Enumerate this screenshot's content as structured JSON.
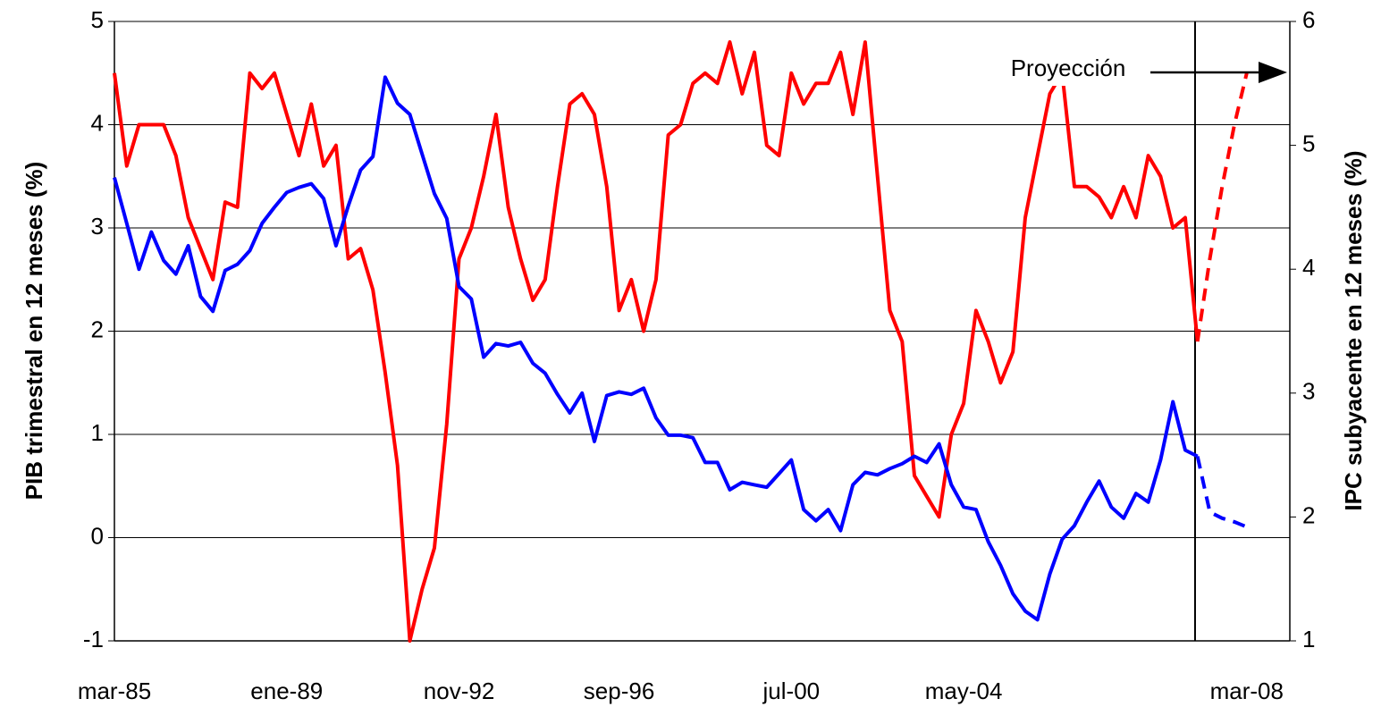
{
  "chart_data": {
    "type": "line",
    "ylabel": "PIB trimestral en 12 meses (%)",
    "y2label": "IPC subyacente en 12 meses (%)",
    "annotation": "Proyección",
    "categories": [
      "mar-85",
      null,
      null,
      null,
      null,
      null,
      null,
      null,
      null,
      null,
      null,
      null,
      null,
      null,
      "ene-89",
      null,
      null,
      null,
      null,
      null,
      null,
      null,
      null,
      null,
      null,
      null,
      null,
      null,
      "nov-92",
      null,
      null,
      null,
      null,
      null,
      null,
      null,
      null,
      null,
      null,
      null,
      null,
      "sep-96",
      null,
      null,
      null,
      null,
      null,
      null,
      null,
      null,
      null,
      null,
      null,
      null,
      null,
      "jul-00",
      null,
      null,
      null,
      null,
      null,
      null,
      null,
      null,
      null,
      null,
      null,
      null,
      null,
      "may-04",
      null,
      null,
      null,
      null,
      null,
      null,
      null,
      null,
      null,
      null,
      null,
      null,
      null,
      null,
      null,
      null,
      null,
      null,
      null,
      null,
      null,
      null,
      "mar-08"
    ],
    "ylim": [
      -1,
      5
    ],
    "yticks": [
      -1,
      0,
      1,
      2,
      3,
      4,
      5
    ],
    "y2lim": [
      1,
      6
    ],
    "y2ticks": [
      1,
      2,
      3,
      4,
      5,
      6
    ],
    "grid": true,
    "series": [
      {
        "color": "#ff0000",
        "axis": "y",
        "dashed": false,
        "values": [
          4.5,
          3.6,
          4.0,
          4.0,
          4.0,
          3.7,
          3.1,
          2.8,
          2.5,
          3.25,
          3.2,
          4.5,
          4.35,
          4.5,
          4.1,
          3.7,
          4.2,
          3.6,
          3.8,
          2.7,
          2.8,
          2.4,
          1.6,
          0.7,
          -1.0,
          -0.5,
          -0.1,
          1.1,
          2.7,
          3.0,
          3.5,
          4.1,
          3.2,
          2.7,
          2.3,
          2.5,
          3.4,
          4.2,
          4.3,
          4.1,
          3.4,
          2.2,
          2.5,
          2.0,
          2.5,
          3.9,
          4.0,
          4.4,
          4.5,
          4.4,
          4.8,
          4.3,
          4.7,
          3.8,
          3.7,
          4.5,
          4.2,
          4.4,
          4.4,
          4.7,
          4.1,
          4.8,
          3.5,
          2.2,
          1.9,
          0.6,
          0.4,
          0.2,
          1.0,
          1.3,
          2.2,
          1.9,
          1.5,
          1.8,
          3.1,
          3.7,
          4.3,
          4.5,
          3.4,
          3.4,
          3.3,
          3.1,
          3.4,
          3.1,
          3.7,
          3.5,
          3.0,
          3.1,
          1.9,
          null,
          null,
          null,
          null
        ]
      },
      {
        "color": "#ff0000",
        "axis": "y",
        "dashed": true,
        "values": [
          null,
          null,
          null,
          null,
          null,
          null,
          null,
          null,
          null,
          null,
          null,
          null,
          null,
          null,
          null,
          null,
          null,
          null,
          null,
          null,
          null,
          null,
          null,
          null,
          null,
          null,
          null,
          null,
          null,
          null,
          null,
          null,
          null,
          null,
          null,
          null,
          null,
          null,
          null,
          null,
          null,
          null,
          null,
          null,
          null,
          null,
          null,
          null,
          null,
          null,
          null,
          null,
          null,
          null,
          null,
          null,
          null,
          null,
          null,
          null,
          null,
          null,
          null,
          null,
          null,
          null,
          null,
          null,
          null,
          null,
          null,
          null,
          null,
          null,
          null,
          null,
          null,
          null,
          null,
          null,
          null,
          null,
          null,
          null,
          null,
          null,
          null,
          null,
          1.9,
          2.7,
          3.4,
          4.0,
          4.5
        ]
      },
      {
        "color": "#0000ff",
        "axis": "y2",
        "dashed": false,
        "values": [
          4.74,
          4.37,
          4.0,
          4.3,
          4.07,
          3.96,
          4.19,
          3.78,
          3.66,
          3.99,
          4.04,
          4.15,
          4.37,
          4.5,
          4.62,
          4.66,
          4.69,
          4.57,
          4.19,
          4.51,
          4.8,
          4.91,
          5.55,
          5.34,
          5.25,
          4.93,
          4.61,
          4.41,
          3.86,
          3.76,
          3.29,
          3.4,
          3.38,
          3.41,
          3.24,
          3.16,
          2.99,
          2.84,
          3.0,
          2.61,
          2.98,
          3.01,
          2.99,
          3.04,
          2.8,
          2.66,
          2.66,
          2.64,
          2.44,
          2.44,
          2.22,
          2.28,
          2.26,
          2.24,
          2.35,
          2.46,
          2.06,
          1.97,
          2.06,
          1.89,
          2.26,
          2.36,
          2.34,
          2.39,
          2.43,
          2.49,
          2.44,
          2.59,
          2.26,
          2.08,
          2.06,
          1.8,
          1.61,
          1.38,
          1.24,
          1.17,
          1.54,
          1.82,
          1.93,
          2.12,
          2.29,
          2.08,
          1.99,
          2.19,
          2.12,
          2.46,
          2.93,
          2.54,
          2.49,
          null,
          null,
          null,
          null
        ]
      },
      {
        "color": "#0000ff",
        "axis": "y2",
        "dashed": true,
        "values": [
          null,
          null,
          null,
          null,
          null,
          null,
          null,
          null,
          null,
          null,
          null,
          null,
          null,
          null,
          null,
          null,
          null,
          null,
          null,
          null,
          null,
          null,
          null,
          null,
          null,
          null,
          null,
          null,
          null,
          null,
          null,
          null,
          null,
          null,
          null,
          null,
          null,
          null,
          null,
          null,
          null,
          null,
          null,
          null,
          null,
          null,
          null,
          null,
          null,
          null,
          null,
          null,
          null,
          null,
          null,
          null,
          null,
          null,
          null,
          null,
          null,
          null,
          null,
          null,
          null,
          null,
          null,
          null,
          null,
          null,
          null,
          null,
          null,
          null,
          null,
          null,
          null,
          null,
          null,
          null,
          null,
          null,
          null,
          null,
          null,
          null,
          null,
          null,
          2.49,
          2.04,
          1.99,
          1.96,
          1.92
        ]
      }
    ]
  }
}
